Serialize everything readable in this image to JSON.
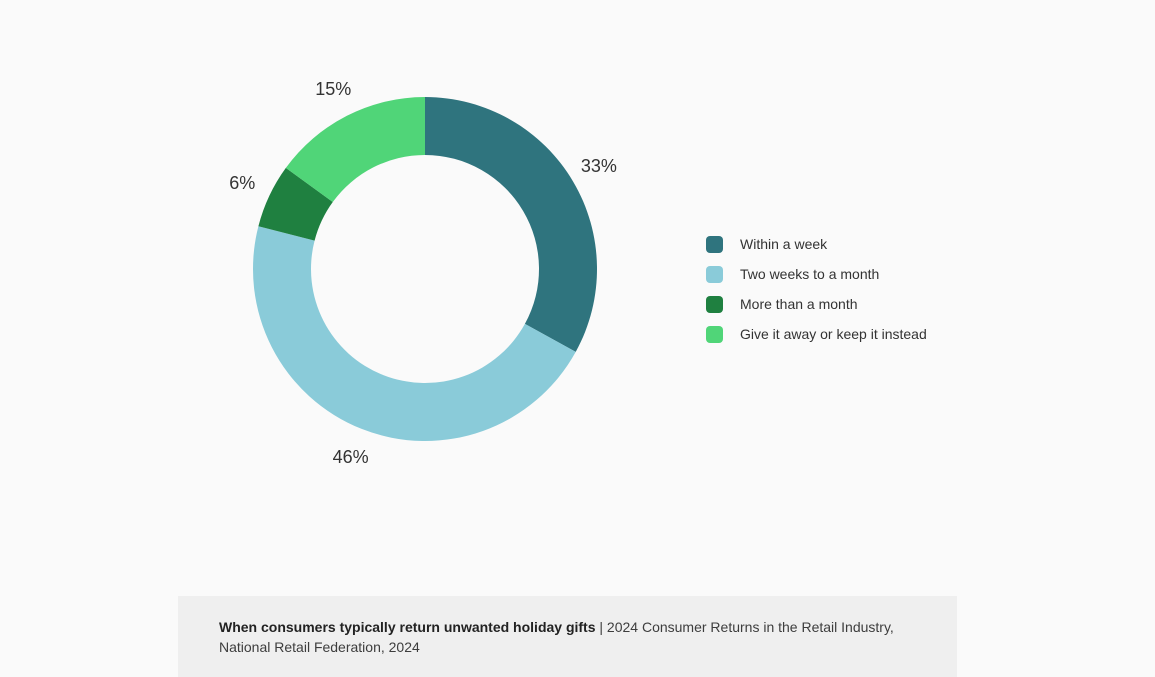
{
  "page": {
    "background": "#fafafa"
  },
  "chart_data": {
    "type": "pie",
    "subtype": "donut",
    "start_at": "top",
    "direction": "clockwise",
    "inner_radius_ratio": 0.66,
    "labels": "outside-percent",
    "legend_position": "right",
    "segments": [
      {
        "label": "Within a week",
        "value": 33,
        "display": "33%",
        "color": "#2f747e"
      },
      {
        "label": "Two weeks to a month",
        "value": 46,
        "display": "46%",
        "color": "#8acbd9"
      },
      {
        "label": "More than a month",
        "value": 6,
        "display": "6%",
        "color": "#1f8040"
      },
      {
        "label": "Give it away or keep it instead",
        "value": 15,
        "display": "15%",
        "color": "#50d578"
      }
    ]
  },
  "caption": {
    "title": "When consumers typically return unwanted holiday gifts",
    "source": "| 2024 Consumer Returns in the Retail Industry, National Retail Federation, 2024",
    "background": "#efefef"
  }
}
